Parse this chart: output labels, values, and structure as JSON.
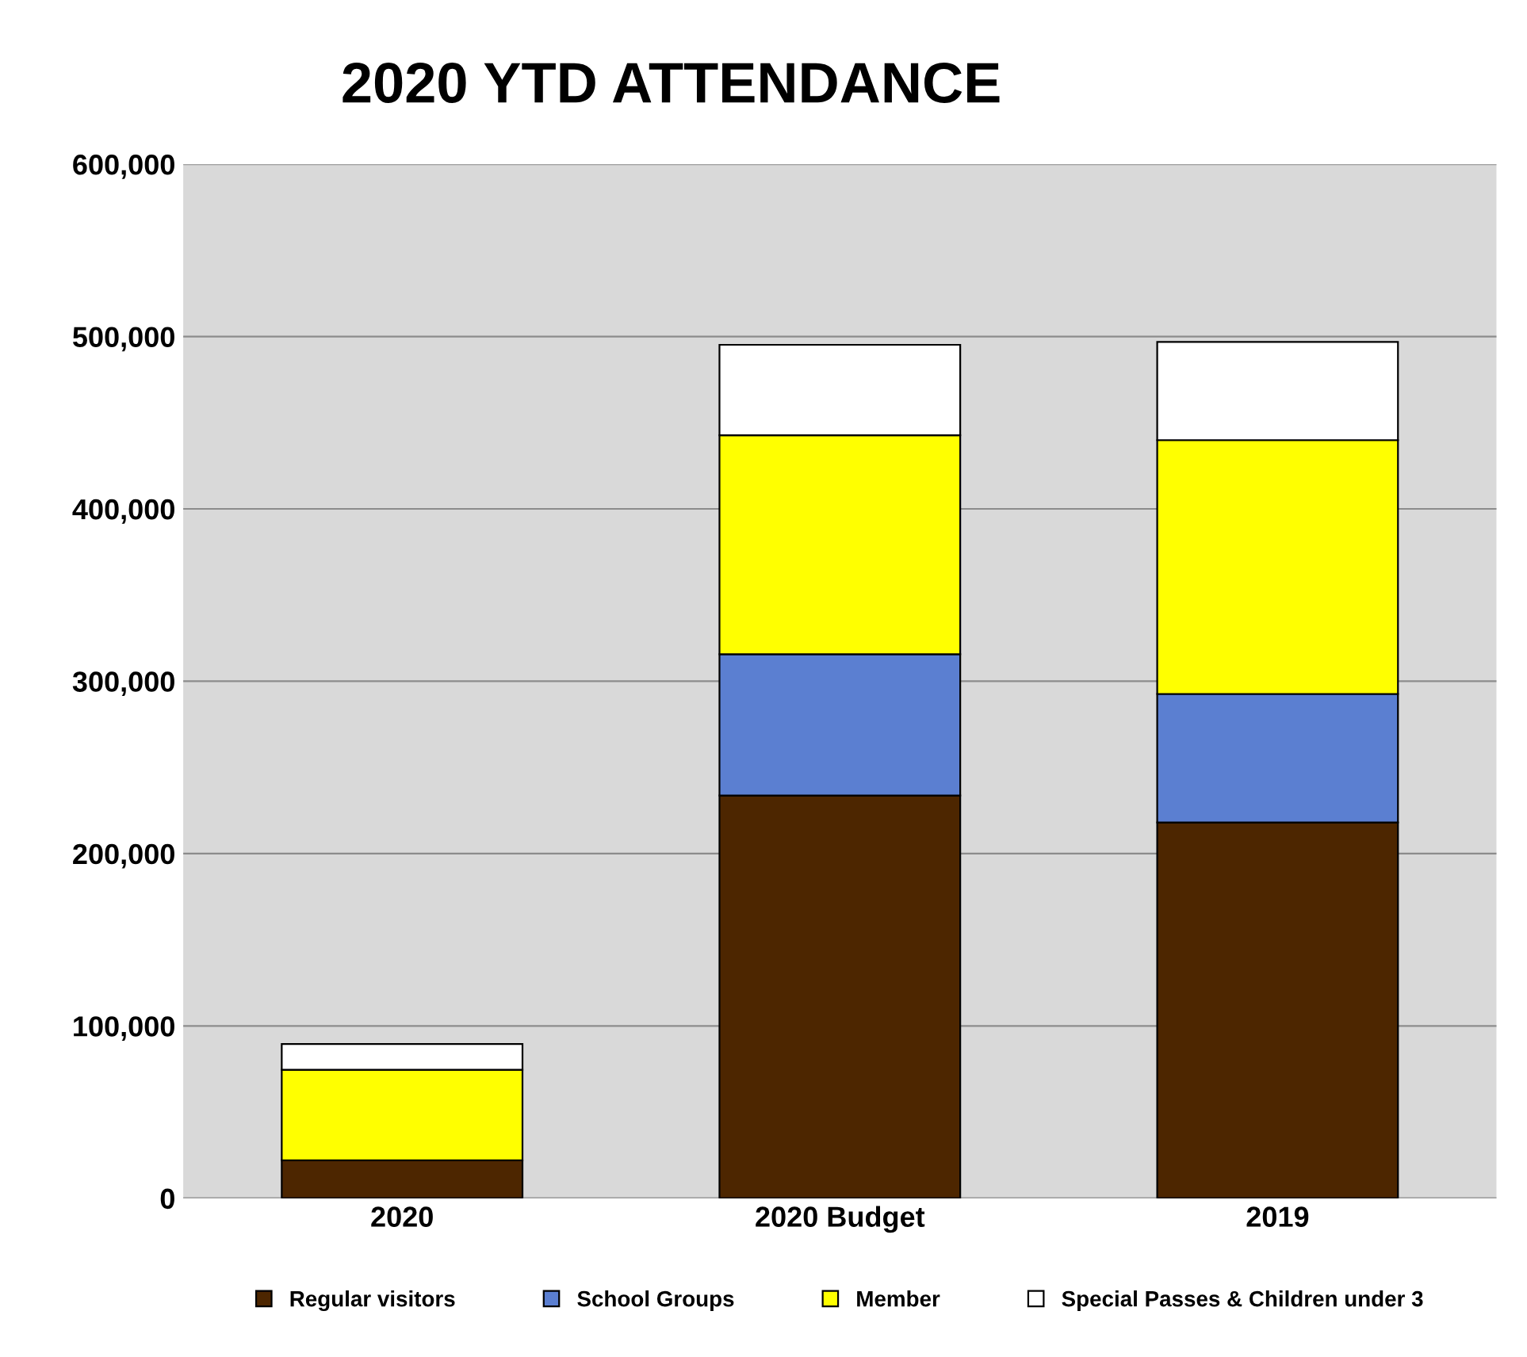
{
  "chart_data": {
    "type": "bar",
    "title": "2020 YTD ATTENDANCE",
    "stacked": true,
    "categories": [
      "2020",
      "2020 Budget",
      "2019"
    ],
    "series": [
      {
        "name": "Regular visitors",
        "color": "#4d2600",
        "values": [
          22000,
          233700,
          218000
        ]
      },
      {
        "name": "School Groups",
        "color": "#5b7fd1",
        "values": [
          0,
          82000,
          74600
        ]
      },
      {
        "name": "Member",
        "color": "#ffff00",
        "values": [
          52500,
          127000,
          147300
        ]
      },
      {
        "name": "Special Passes & Children under 3",
        "color": "#ffffff",
        "values": [
          15000,
          52500,
          57000
        ]
      }
    ],
    "ylim": [
      0,
      600000
    ],
    "yticks": [
      0,
      {
        "value": 100000,
        "label": "100,000"
      },
      {
        "value": 200000,
        "label": "200,000"
      },
      {
        "value": 300000,
        "label": "300,000"
      },
      {
        "value": 400000,
        "label": "400,000"
      },
      {
        "value": 500000,
        "label": "500,000"
      },
      {
        "value": 600000,
        "label": "600,000"
      }
    ],
    "grid": "y",
    "legend": "bottom"
  }
}
